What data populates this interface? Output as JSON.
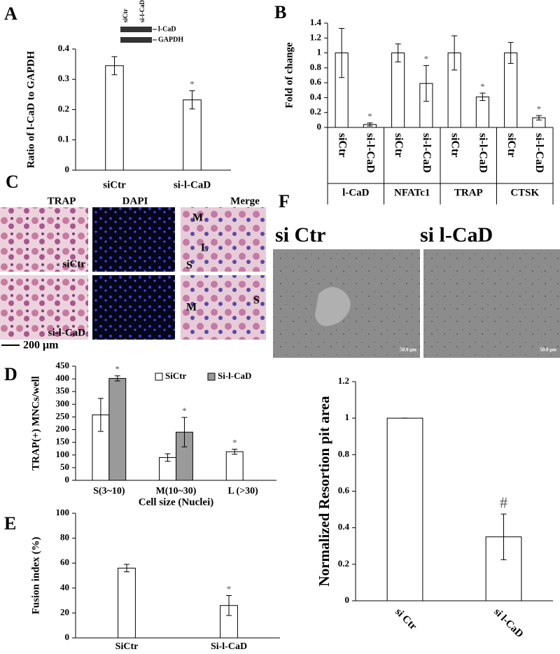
{
  "chart_data": [
    {
      "type": "bar",
      "panel": "A",
      "ylabel": "Ratio of l-CaD to GAPDH",
      "categories": [
        "siCtr",
        "si-l-CaD"
      ],
      "series": [
        {
          "color": "#ffffff",
          "values": [
            0.345,
            0.232
          ],
          "errors": [
            0.03,
            0.03
          ],
          "annotations": [
            null,
            "*"
          ]
        }
      ],
      "ylim": [
        0,
        0.4
      ],
      "yticks": [
        0,
        0.1,
        0.2,
        0.3,
        0.4
      ],
      "blot": {
        "lanes": [
          "siCtr",
          "si-l-CaD"
        ],
        "bands": [
          "l-CaD",
          "GAPDH"
        ]
      }
    },
    {
      "type": "bar",
      "panel": "B",
      "ylabel": "Fold of change",
      "categories": [
        "siCtr",
        "si-l-CaD",
        "siCtr",
        "si-l-CaD",
        "siCtr",
        "si-l-CaD",
        "siCtr",
        "si-l-CaD"
      ],
      "groups": [
        "l-CaD",
        "NFATc1",
        "TRAP",
        "CTSK"
      ],
      "series": [
        {
          "color": "#ffffff",
          "values": [
            1,
            0.04,
            1,
            0.59,
            1,
            0.41,
            1,
            0.13
          ],
          "errors": [
            0.33,
            0.02,
            0.12,
            0.24,
            0.23,
            0.05,
            0.14,
            0.03
          ],
          "annotations": [
            null,
            "*",
            null,
            "*",
            null,
            "*",
            null,
            "*"
          ]
        }
      ],
      "ylim": [
        0,
        1.4
      ],
      "yticks": [
        0,
        0.2,
        0.4,
        0.6,
        0.8,
        1,
        1.2,
        1.4
      ]
    },
    {
      "type": "bar",
      "panel": "D",
      "ylabel": "TRAP(+) MNCs/well",
      "xlabel": "Cell size (Nuclei)",
      "categories": [
        "S(3~10)",
        "M(10~30)",
        "L (>30)"
      ],
      "series": [
        {
          "name": "SiCtr",
          "color": "#ffffff",
          "values": [
            258,
            90,
            113
          ],
          "errors": [
            65,
            15,
            10
          ],
          "annotations": [
            null,
            null,
            "*"
          ]
        },
        {
          "name": "Si-l-CaD",
          "color": "#9a9a9a",
          "values": [
            402,
            190,
            null
          ],
          "errors": [
            10,
            58,
            null
          ],
          "annotations": [
            "*",
            "*",
            null
          ]
        }
      ],
      "ylim": [
        0,
        450
      ],
      "yticks": [
        0,
        50,
        100,
        150,
        200,
        250,
        300,
        350,
        400,
        450
      ]
    },
    {
      "type": "bar",
      "panel": "E",
      "ylabel": "Fusion index (%)",
      "categories": [
        "SiCtr",
        "Si-l-CaD"
      ],
      "series": [
        {
          "color": "#ffffff",
          "values": [
            56,
            26
          ],
          "errors": [
            3,
            8
          ],
          "annotations": [
            null,
            "*"
          ]
        }
      ],
      "ylim": [
        0,
        100
      ],
      "yticks": [
        0,
        20,
        40,
        60,
        80,
        100
      ]
    },
    {
      "type": "bar",
      "ylabel": "Normalized Resortion pit area",
      "categories": [
        "si Ctr",
        "si l-CaD"
      ],
      "series": [
        {
          "color": "#ffffff",
          "values": [
            1,
            0.35
          ],
          "errors": [
            0,
            0.125
          ],
          "annotations": [
            null,
            "#"
          ]
        }
      ],
      "ylim": [
        0,
        1.2
      ],
      "yticks": [
        0,
        0.2,
        0.4,
        0.6,
        0.8,
        1,
        1.2
      ]
    }
  ],
  "panel_C": {
    "letter": "C",
    "columns": [
      "TRAP",
      "DAPI",
      "Merge"
    ],
    "rows": [
      "siCtr",
      "si-l-CaD"
    ],
    "scale_bar": "200 μm",
    "cell_labels": [
      "M",
      "L",
      "S",
      "M",
      "S"
    ]
  },
  "panel_F_images": {
    "letter": "F",
    "labels": [
      "si Ctr",
      "si l-CaD"
    ],
    "scale_bars": [
      "50.0 μm",
      "50.0 μm"
    ]
  }
}
